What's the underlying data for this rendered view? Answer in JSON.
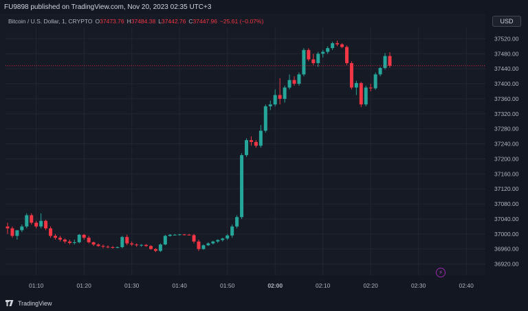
{
  "header": {
    "publisher_line": "FU9898 published on TradingView.com, Nov 20, 2023 02:35 UTC+3"
  },
  "legend": {
    "symbol": "Bitcoin / U.S. Dollar, 1, CRYPTO",
    "open_label": "O",
    "open_value": "37473.76",
    "high_label": "H",
    "high_value": "37484.38",
    "low_label": "L",
    "low_value": "37442.76",
    "close_label": "C",
    "close_value": "37447.96",
    "change": "−25.61 (−0.07%)"
  },
  "currency_button": "USD",
  "footer": {
    "brand": "TradingView"
  },
  "colors": {
    "up": "#26a69a",
    "down": "#f23645",
    "background": "#161a25",
    "grid": "#232632"
  },
  "icons": {
    "alert": "lightning-icon",
    "logo": "tradingview-logo-icon"
  },
  "chart_data": {
    "type": "candlestick",
    "ylim": [
      36890,
      37550
    ],
    "y_ticks": [
      "37520.00",
      "37480.00",
      "37440.00",
      "37400.00",
      "37360.00",
      "37320.00",
      "37280.00",
      "37240.00",
      "37200.00",
      "37160.00",
      "37120.00",
      "37080.00",
      "37040.00",
      "37000.00",
      "36960.00",
      "36920.00"
    ],
    "x_ticks": [
      "01:10",
      "01:20",
      "01:30",
      "01:40",
      "01:50",
      "02:00",
      "02:10",
      "02:20",
      "02:30",
      "02:40"
    ],
    "last_price": "37447.96",
    "candles": [
      {
        "o": 37020,
        "h": 37030,
        "l": 37000,
        "c": 37015
      },
      {
        "o": 37015,
        "h": 37020,
        "l": 36990,
        "c": 36995
      },
      {
        "o": 36995,
        "h": 37010,
        "l": 36985,
        "c": 37010
      },
      {
        "o": 37010,
        "h": 37025,
        "l": 37005,
        "c": 37020
      },
      {
        "o": 37020,
        "h": 37055,
        "l": 37015,
        "c": 37050
      },
      {
        "o": 37050,
        "h": 37055,
        "l": 37025,
        "c": 37030
      },
      {
        "o": 37030,
        "h": 37035,
        "l": 37015,
        "c": 37020
      },
      {
        "o": 37020,
        "h": 37055,
        "l": 37015,
        "c": 37035
      },
      {
        "o": 37035,
        "h": 37038,
        "l": 37010,
        "c": 37015
      },
      {
        "o": 37015,
        "h": 37020,
        "l": 36990,
        "c": 36995
      },
      {
        "o": 36995,
        "h": 37000,
        "l": 36985,
        "c": 36990
      },
      {
        "o": 36990,
        "h": 36995,
        "l": 36980,
        "c": 36985
      },
      {
        "o": 36985,
        "h": 36988,
        "l": 36975,
        "c": 36980
      },
      {
        "o": 36980,
        "h": 36985,
        "l": 36972,
        "c": 36976
      },
      {
        "o": 36976,
        "h": 36985,
        "l": 36972,
        "c": 36978
      },
      {
        "o": 36978,
        "h": 37000,
        "l": 36975,
        "c": 36998
      },
      {
        "o": 36998,
        "h": 37000,
        "l": 36985,
        "c": 36990
      },
      {
        "o": 36990,
        "h": 36995,
        "l": 36975,
        "c": 36978
      },
      {
        "o": 36978,
        "h": 36980,
        "l": 36968,
        "c": 36972
      },
      {
        "o": 36972,
        "h": 36975,
        "l": 36966,
        "c": 36968
      },
      {
        "o": 36968,
        "h": 36972,
        "l": 36962,
        "c": 36966
      },
      {
        "o": 36966,
        "h": 36970,
        "l": 36962,
        "c": 36965
      },
      {
        "o": 36965,
        "h": 36968,
        "l": 36961,
        "c": 36964
      },
      {
        "o": 36964,
        "h": 36967,
        "l": 36962,
        "c": 36965
      },
      {
        "o": 36965,
        "h": 36995,
        "l": 36962,
        "c": 36992
      },
      {
        "o": 36992,
        "h": 36998,
        "l": 36970,
        "c": 36975
      },
      {
        "o": 36975,
        "h": 36980,
        "l": 36968,
        "c": 36972
      },
      {
        "o": 36972,
        "h": 36975,
        "l": 36966,
        "c": 36970
      },
      {
        "o": 36970,
        "h": 36973,
        "l": 36966,
        "c": 36971
      },
      {
        "o": 36971,
        "h": 36973,
        "l": 36966,
        "c": 36968
      },
      {
        "o": 36968,
        "h": 36970,
        "l": 36958,
        "c": 36960
      },
      {
        "o": 36960,
        "h": 36962,
        "l": 36952,
        "c": 36955
      },
      {
        "o": 36955,
        "h": 36975,
        "l": 36952,
        "c": 36972
      },
      {
        "o": 36972,
        "h": 36998,
        "l": 36970,
        "c": 36995
      },
      {
        "o": 36995,
        "h": 37000,
        "l": 36993,
        "c": 36998
      },
      {
        "o": 36998,
        "h": 37000,
        "l": 36996,
        "c": 36998
      },
      {
        "o": 36998,
        "h": 37000,
        "l": 36996,
        "c": 36999
      },
      {
        "o": 36999,
        "h": 37000,
        "l": 36996,
        "c": 36998
      },
      {
        "o": 36998,
        "h": 37000,
        "l": 36996,
        "c": 36997
      },
      {
        "o": 36997,
        "h": 37000,
        "l": 36975,
        "c": 36980
      },
      {
        "o": 36980,
        "h": 36985,
        "l": 36955,
        "c": 36960
      },
      {
        "o": 36960,
        "h": 36972,
        "l": 36958,
        "c": 36970
      },
      {
        "o": 36970,
        "h": 36978,
        "l": 36968,
        "c": 36975
      },
      {
        "o": 36975,
        "h": 36982,
        "l": 36972,
        "c": 36980
      },
      {
        "o": 36980,
        "h": 36986,
        "l": 36976,
        "c": 36984
      },
      {
        "o": 36984,
        "h": 36990,
        "l": 36980,
        "c": 36988
      },
      {
        "o": 36988,
        "h": 37000,
        "l": 36984,
        "c": 36996
      },
      {
        "o": 36996,
        "h": 37025,
        "l": 36990,
        "c": 37020
      },
      {
        "o": 37020,
        "h": 37050,
        "l": 37015,
        "c": 37045
      },
      {
        "o": 37045,
        "h": 37215,
        "l": 37040,
        "c": 37210
      },
      {
        "o": 37210,
        "h": 37255,
        "l": 37205,
        "c": 37250
      },
      {
        "o": 37250,
        "h": 37260,
        "l": 37235,
        "c": 37245
      },
      {
        "o": 37245,
        "h": 37250,
        "l": 37230,
        "c": 37235
      },
      {
        "o": 37235,
        "h": 37290,
        "l": 37230,
        "c": 37275
      },
      {
        "o": 37275,
        "h": 37345,
        "l": 37270,
        "c": 37340
      },
      {
        "o": 37340,
        "h": 37355,
        "l": 37330,
        "c": 37345
      },
      {
        "o": 37345,
        "h": 37385,
        "l": 37340,
        "c": 37370
      },
      {
        "o": 37370,
        "h": 37415,
        "l": 37345,
        "c": 37360
      },
      {
        "o": 37360,
        "h": 37395,
        "l": 37350,
        "c": 37390
      },
      {
        "o": 37390,
        "h": 37425,
        "l": 37385,
        "c": 37410
      },
      {
        "o": 37410,
        "h": 37420,
        "l": 37395,
        "c": 37400
      },
      {
        "o": 37400,
        "h": 37430,
        "l": 37395,
        "c": 37425
      },
      {
        "o": 37425,
        "h": 37495,
        "l": 37420,
        "c": 37490
      },
      {
        "o": 37490,
        "h": 37495,
        "l": 37460,
        "c": 37465
      },
      {
        "o": 37465,
        "h": 37480,
        "l": 37450,
        "c": 37455
      },
      {
        "o": 37455,
        "h": 37485,
        "l": 37445,
        "c": 37480
      },
      {
        "o": 37480,
        "h": 37490,
        "l": 37470,
        "c": 37485
      },
      {
        "o": 37485,
        "h": 37500,
        "l": 37480,
        "c": 37495
      },
      {
        "o": 37495,
        "h": 37512,
        "l": 37490,
        "c": 37508
      },
      {
        "o": 37508,
        "h": 37515,
        "l": 37500,
        "c": 37505
      },
      {
        "o": 37505,
        "h": 37508,
        "l": 37495,
        "c": 37498
      },
      {
        "o": 37498,
        "h": 37502,
        "l": 37450,
        "c": 37455
      },
      {
        "o": 37455,
        "h": 37460,
        "l": 37385,
        "c": 37390
      },
      {
        "o": 37390,
        "h": 37408,
        "l": 37370,
        "c": 37402
      },
      {
        "o": 37402,
        "h": 37405,
        "l": 37338,
        "c": 37345
      },
      {
        "o": 37345,
        "h": 37395,
        "l": 37340,
        "c": 37390
      },
      {
        "o": 37390,
        "h": 37400,
        "l": 37380,
        "c": 37388
      },
      {
        "o": 37388,
        "h": 37430,
        "l": 37384,
        "c": 37425
      },
      {
        "o": 37425,
        "h": 37445,
        "l": 37420,
        "c": 37442
      },
      {
        "o": 37442,
        "h": 37482,
        "l": 37438,
        "c": 37474
      },
      {
        "o": 37474,
        "h": 37484,
        "l": 37443,
        "c": 37448
      }
    ]
  }
}
